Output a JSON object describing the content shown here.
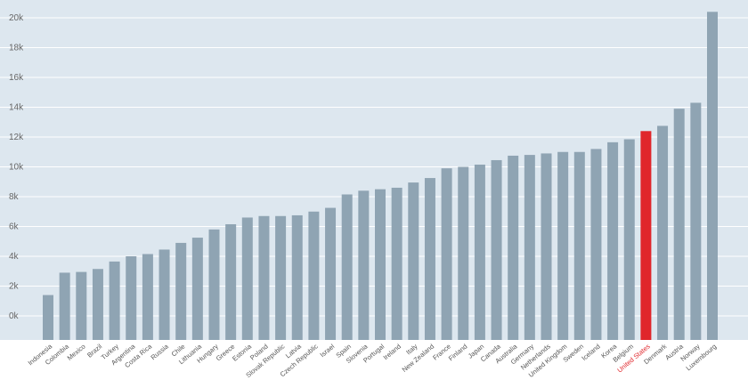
{
  "chart_data": {
    "type": "bar",
    "title": "",
    "xlabel": "",
    "ylabel": "",
    "ylim": [
      -1500,
      21000
    ],
    "yticks": [
      0,
      2000,
      4000,
      6000,
      8000,
      10000,
      12000,
      14000,
      16000,
      18000,
      20000
    ],
    "ytick_labels": [
      "0k",
      "2k",
      "4k",
      "6k",
      "8k",
      "10k",
      "12k",
      "14k",
      "16k",
      "18k",
      "20k"
    ],
    "grid": true,
    "categories": [
      "Indonesia",
      "Colombia",
      "Mexico",
      "Brazil",
      "Turkey",
      "Argentina",
      "Costa Rica",
      "Russia",
      "Chile",
      "Lithuania",
      "Hungary",
      "Greece",
      "Estonia",
      "Poland",
      "Slovak Republic",
      "Latvia",
      "Czech Republic",
      "Israel",
      "Spain",
      "Slovenia",
      "Portugal",
      "Ireland",
      "Italy",
      "New Zealand",
      "France",
      "Finland",
      "Japan",
      "Canada",
      "Australia",
      "Germany",
      "Netherlands",
      "United Kingdom",
      "Sweden",
      "Iceland",
      "Korea",
      "Belgium",
      "United States",
      "Denmark",
      "Austria",
      "Norway",
      "Luxembourg"
    ],
    "values": [
      1400,
      2900,
      2950,
      3150,
      3650,
      4000,
      4150,
      4450,
      4900,
      5250,
      5800,
      6150,
      6600,
      6700,
      6700,
      6750,
      7000,
      7250,
      8150,
      8400,
      8500,
      8600,
      8950,
      9250,
      9900,
      10000,
      10150,
      10450,
      10750,
      10800,
      10900,
      11000,
      11000,
      11200,
      11650,
      11850,
      12400,
      12750,
      13900,
      14300,
      20400
    ],
    "highlight_category": "United States",
    "colors": {
      "plot_background": "#dde7ef",
      "bar": "#8fa4b3",
      "highlight_bar": "#e0262b",
      "gridline": "#ffffff",
      "tick_text": "#666666",
      "highlight_text": "#e0262b"
    }
  }
}
